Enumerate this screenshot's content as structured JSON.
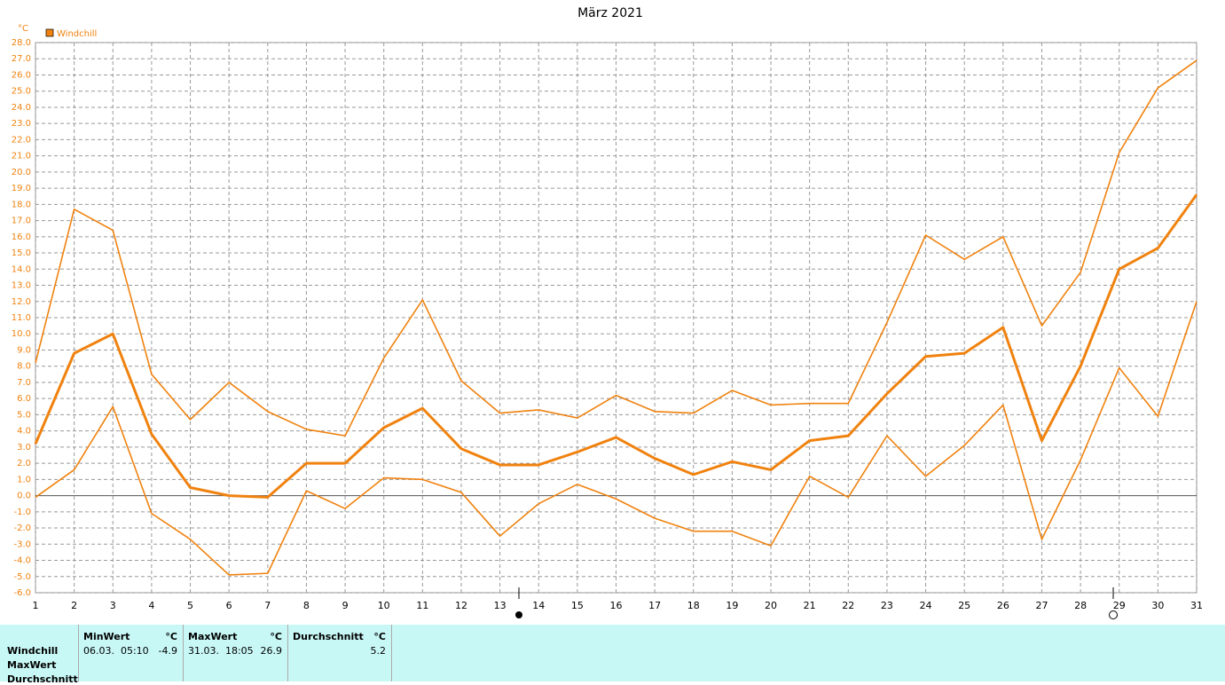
{
  "chart_data": {
    "type": "line",
    "title": "März 2021",
    "y_unit": "°C",
    "legend": "Windchill",
    "color": "#f0820f",
    "grid": true,
    "x": [
      1,
      2,
      3,
      4,
      5,
      6,
      7,
      8,
      9,
      10,
      11,
      12,
      13,
      14,
      15,
      16,
      17,
      18,
      19,
      20,
      21,
      22,
      23,
      24,
      25,
      26,
      27,
      28,
      29,
      30,
      31
    ],
    "xlim": [
      1,
      31
    ],
    "ylim": [
      -6,
      28
    ],
    "yticks": [
      {
        "value": -6,
        "label": "-6.0"
      },
      {
        "value": -5,
        "label": "-5.0"
      },
      {
        "value": -4,
        "label": "-4.0"
      },
      {
        "value": -3,
        "label": "-3.0"
      },
      {
        "value": -2,
        "label": "-2.0"
      },
      {
        "value": -1,
        "label": "-1.0"
      },
      {
        "value": 0,
        "label": "0.0"
      },
      {
        "value": 1,
        "label": "1.0"
      },
      {
        "value": 2,
        "label": "2.0"
      },
      {
        "value": 3,
        "label": "3.0"
      },
      {
        "value": 4,
        "label": "4.0"
      },
      {
        "value": 5,
        "label": "5.0"
      },
      {
        "value": 6,
        "label": "6.0"
      },
      {
        "value": 7,
        "label": "7.0"
      },
      {
        "value": 8,
        "label": "8.0"
      },
      {
        "value": 9,
        "label": "9.0"
      },
      {
        "value": 10,
        "label": "10.0"
      },
      {
        "value": 11,
        "label": "11.0"
      },
      {
        "value": 12,
        "label": "12.0"
      },
      {
        "value": 13,
        "label": "13.0"
      },
      {
        "value": 14,
        "label": "14.0"
      },
      {
        "value": 15,
        "label": "15.0"
      },
      {
        "value": 16,
        "label": "16.0"
      },
      {
        "value": 17,
        "label": "17.0"
      },
      {
        "value": 18,
        "label": "18.0"
      },
      {
        "value": 19,
        "label": "19.0"
      },
      {
        "value": 20,
        "label": "20.0"
      },
      {
        "value": 21,
        "label": "21.0"
      },
      {
        "value": 22,
        "label": "22.0"
      },
      {
        "value": 23,
        "label": "23.0"
      },
      {
        "value": 24,
        "label": "24.0"
      },
      {
        "value": 25,
        "label": "25.0"
      },
      {
        "value": 26,
        "label": "26.0"
      },
      {
        "value": 27,
        "label": "27.0"
      },
      {
        "value": 28,
        "label": "28.0"
      }
    ],
    "series": [
      {
        "values": [
          8.2,
          17.7,
          16.4,
          7.5,
          4.7,
          7.0,
          5.2,
          4.1,
          3.7,
          8.5,
          12.1,
          7.1,
          5.1,
          5.3,
          4.8,
          6.2,
          5.2,
          5.1,
          6.5,
          5.6,
          5.7,
          5.7,
          10.7,
          16.1,
          14.6,
          16.0,
          10.5,
          13.8,
          21.2,
          25.2,
          26.9
        ]
      },
      {
        "values": [
          3.2,
          8.8,
          10.0,
          3.8,
          0.5,
          0.0,
          -0.1,
          2.0,
          2.0,
          4.2,
          5.4,
          2.9,
          1.9,
          1.9,
          2.7,
          3.6,
          2.3,
          1.3,
          2.1,
          1.6,
          3.4,
          3.7,
          6.3,
          8.6,
          8.8,
          10.4,
          3.4,
          8.0,
          14.0,
          15.3,
          18.6
        ]
      },
      {
        "values": [
          -0.1,
          1.6,
          5.5,
          -1.1,
          -2.7,
          -4.9,
          -4.8,
          0.3,
          -0.8,
          1.1,
          1.0,
          0.2,
          -2.5,
          -0.5,
          0.7,
          -0.2,
          -1.4,
          -2.2,
          -2.2,
          -3.1,
          1.2,
          -0.1,
          3.7,
          1.2,
          3.1,
          5.6,
          -2.7,
          2.2,
          7.9,
          4.9,
          12.0
        ]
      }
    ]
  },
  "table": {
    "row_labels": [
      "Windchill",
      "MaxWert",
      "Durchschnitt"
    ],
    "columns": [
      {
        "header": "MinWert",
        "unit": "°C",
        "date": "06.03.  05:10",
        "value": -4.9
      },
      {
        "header": "MaxWert",
        "unit": "°C",
        "date": "31.03.  18:05",
        "value": 26.9
      },
      {
        "header": "Durchschnitt",
        "unit": "°C",
        "value": 5.2
      }
    ]
  }
}
